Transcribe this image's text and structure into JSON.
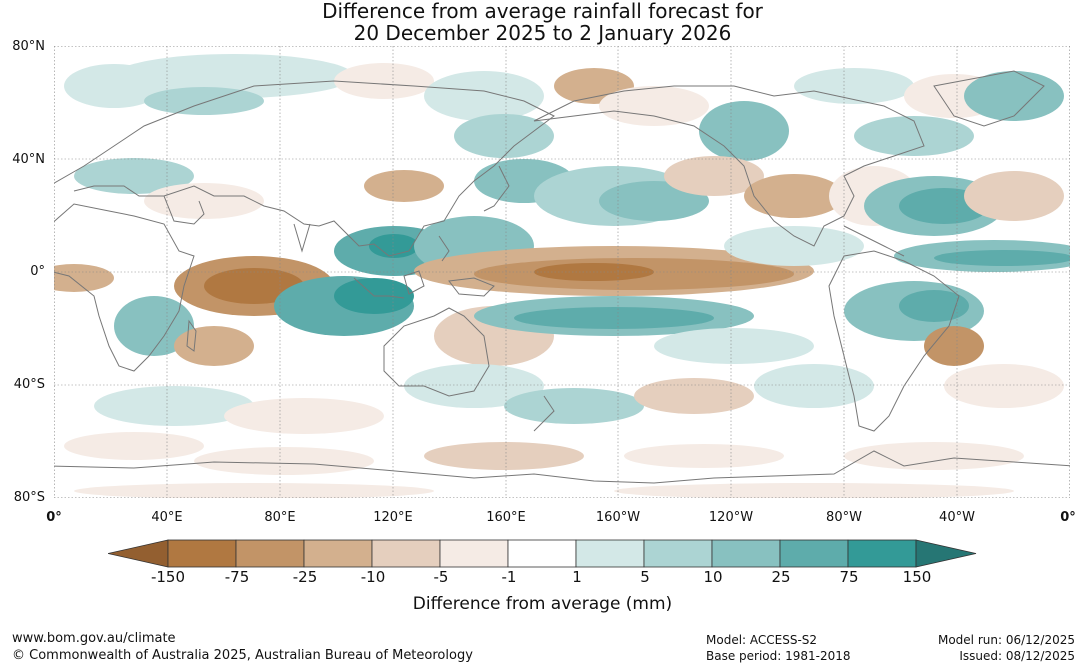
{
  "title": {
    "line1": "Difference from average rainfall forecast for",
    "line2": "20 December 2025 to 2 January 2026"
  },
  "axes": {
    "lat_labels": [
      "80°N",
      "40°N",
      "0°",
      "40°S",
      "80°S"
    ],
    "lon_labels": [
      "0°",
      "40°E",
      "80°E",
      "120°E",
      "160°E",
      "160°W",
      "120°W",
      "80°W",
      "40°W",
      "0°"
    ]
  },
  "colorbar": {
    "title": "Difference from average (mm)",
    "tick_labels": [
      "-150",
      "-75",
      "-25",
      "-10",
      "-5",
      "-1",
      "1",
      "5",
      "10",
      "25",
      "75",
      "150"
    ],
    "colors": [
      "#935f30",
      "#b07841",
      "#c29467",
      "#d3b08e",
      "#e5cfbe",
      "#f5ebe5",
      "#ffffff",
      "#d3e8e7",
      "#acd4d3",
      "#88c1c0",
      "#5eacab",
      "#339a97",
      "#267674"
    ],
    "water_color": "#ffffff",
    "land_line_color": "#777777"
  },
  "footer": {
    "website": "www.bom.gov.au/climate",
    "copyright": "© Commonwealth of Australia 2025, Australian Bureau of Meteorology",
    "model": "Model: ACCESS-S2",
    "base_period": "Base period: 1981-2018",
    "model_run": "Model run: 06/12/2025",
    "issued": "Issued: 08/12/2025"
  }
}
